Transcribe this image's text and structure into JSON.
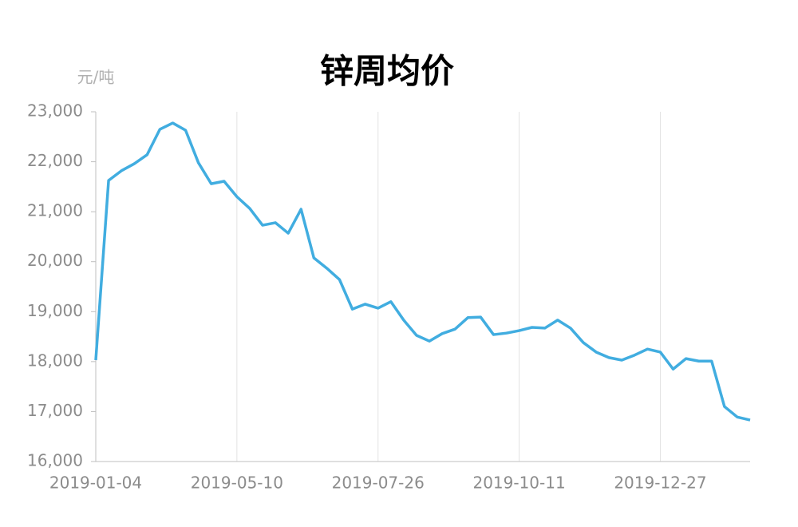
{
  "chart_data": {
    "type": "line",
    "title": "锌周均价",
    "y_label": "元/吨",
    "categories": [
      "2019-01-04",
      null,
      null,
      null,
      null,
      null,
      null,
      null,
      null,
      null,
      null,
      "2019-05-10",
      null,
      null,
      null,
      null,
      null,
      null,
      null,
      null,
      null,
      null,
      "2019-07-26",
      null,
      null,
      null,
      null,
      null,
      null,
      null,
      null,
      null,
      null,
      "2019-10-11",
      null,
      null,
      null,
      null,
      null,
      null,
      null,
      null,
      null,
      null,
      "2019-12-27",
      null,
      null,
      null,
      null,
      null,
      null,
      null
    ],
    "series": [
      {
        "color": "#41ade0",
        "values": [
          18030,
          21625,
          21820,
          21960,
          22140,
          22650,
          22775,
          22630,
          21980,
          21560,
          21610,
          21300,
          21065,
          20730,
          20780,
          20570,
          21050,
          20075,
          19870,
          19640,
          19050,
          19150,
          19070,
          19200,
          18830,
          18525,
          18410,
          18560,
          18650,
          18880,
          18890,
          18540,
          18570,
          18620,
          18685,
          18670,
          18830,
          18670,
          18380,
          18190,
          18080,
          18030,
          18130,
          18250,
          18190,
          17850,
          18060,
          18010,
          18010,
          17100,
          16890,
          16830
        ]
      }
    ],
    "ylim": [
      16000,
      23000
    ],
    "yticks": [
      {
        "value": 16000,
        "label": "16,000"
      },
      {
        "value": 17000,
        "label": "17,000"
      },
      {
        "value": 18000,
        "label": "18,000"
      },
      {
        "value": 19000,
        "label": "19,000"
      },
      {
        "value": 20000,
        "label": "20,000"
      },
      {
        "value": 21000,
        "label": "21,000"
      },
      {
        "value": 22000,
        "label": "22,000"
      },
      {
        "value": 23000,
        "label": "23,000"
      }
    ],
    "grid": true
  }
}
